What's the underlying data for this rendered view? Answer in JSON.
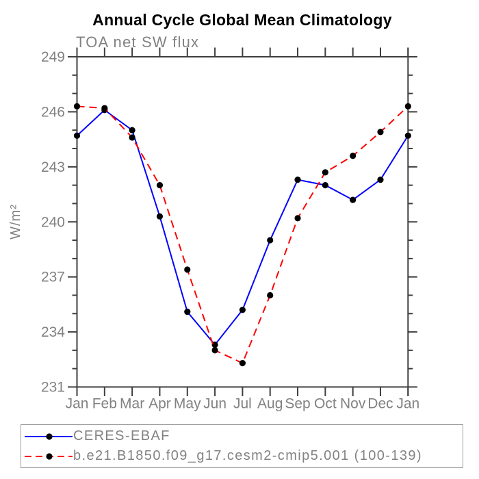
{
  "title": "Annual Cycle Global Mean Climatology",
  "subtitle": "TOA net SW flux",
  "colors": {
    "frame": "#3e3e3e",
    "gray_text": "#828282",
    "series_blue": "#0000ff",
    "series_red": "#ff0000",
    "marker": "#000000",
    "legend_border": "#9c9c9c"
  },
  "chart_data": {
    "type": "line",
    "title": "Annual Cycle Global Mean Climatology",
    "left_string": "TOA net SW flux",
    "ylabel": "W/m²",
    "xlabel": "",
    "ylim": [
      231,
      249
    ],
    "yticks_major": [
      231,
      234,
      237,
      240,
      243,
      246,
      249
    ],
    "ytick_minor_step": 1,
    "grid": false,
    "legend_position": "bottom-left-box",
    "categories": [
      "Jan",
      "Feb",
      "Mar",
      "Apr",
      "May",
      "Jun",
      "Jul",
      "Aug",
      "Sep",
      "Oct",
      "Nov",
      "Dec",
      "Jan"
    ],
    "series": [
      {
        "name": "CERES-EBAF",
        "color": "#0000ff",
        "line_style": "solid",
        "marker": "circle",
        "marker_color": "#000000",
        "values": [
          244.7,
          246.1,
          245.0,
          240.3,
          235.1,
          233.3,
          235.2,
          239.0,
          242.3,
          242.0,
          241.2,
          242.3,
          244.7
        ]
      },
      {
        "name": "b.e21.B1850.f09_g17.cesm2-cmip5.001 (100-139)",
        "color": "#ff0000",
        "line_style": "dashed",
        "marker": "circle",
        "marker_color": "#000000",
        "values": [
          246.3,
          246.2,
          244.6,
          242.0,
          237.4,
          233.0,
          232.3,
          236.0,
          240.2,
          242.7,
          243.6,
          244.9,
          246.3
        ]
      }
    ]
  }
}
